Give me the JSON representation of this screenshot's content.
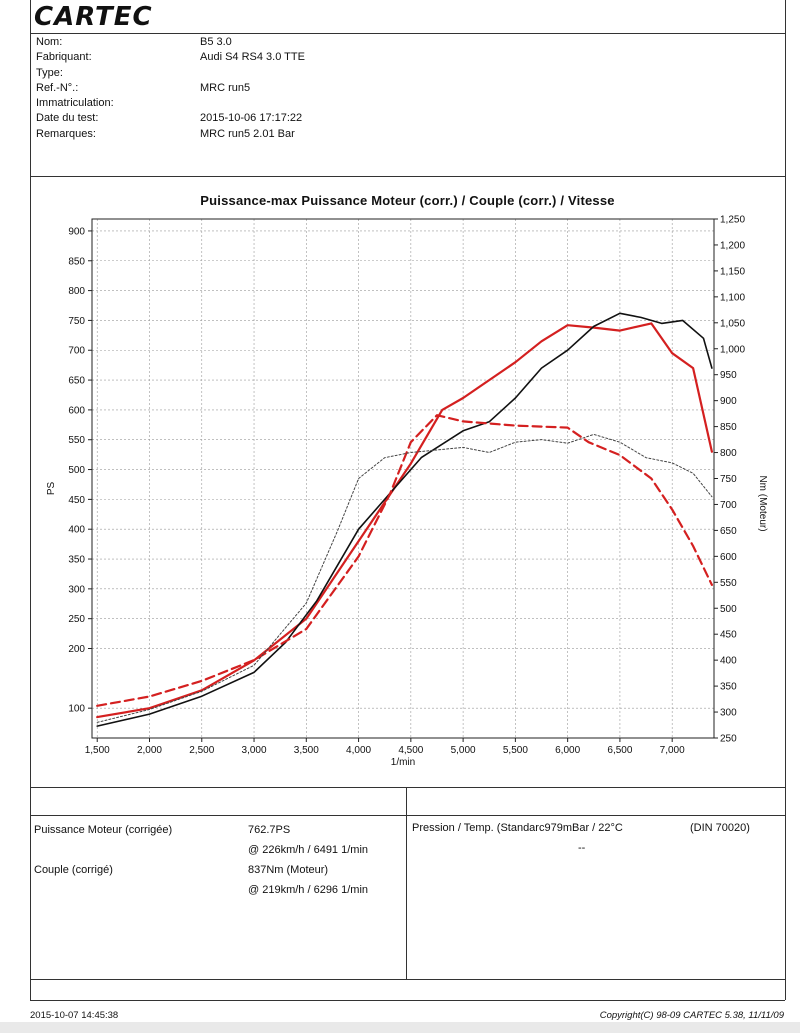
{
  "header": {
    "logo": "CARTEC",
    "fields": [
      {
        "label": "Nom:",
        "value": "B5 3.0"
      },
      {
        "label": "Fabriquant:",
        "value": "Audi S4 RS4 3.0 TTE"
      },
      {
        "label": "Type:",
        "value": ""
      },
      {
        "label": "Ref.-N°.:",
        "value": "MRC run5"
      },
      {
        "label": "Immatriculation:",
        "value": ""
      },
      {
        "label": "Date du test:",
        "value": "2015-10-06 17:17:22"
      },
      {
        "label": "Remarques:",
        "value": "MRC run5 2.01 Bar"
      }
    ]
  },
  "chart_data": {
    "type": "line",
    "title": "Puissance-max Puissance Moteur (corr.) / Couple (corr.) / Vitesse",
    "xlabel": "1/min",
    "ylabel_left": "PS",
    "ylabel_right": "Nm (Moteur)",
    "xlim": [
      1450,
      7400
    ],
    "ylim_left": [
      50,
      920
    ],
    "ylim_right": [
      250,
      1250
    ],
    "x_ticks": [
      1500,
      2000,
      2500,
      3000,
      3500,
      4000,
      4500,
      5000,
      5500,
      6000,
      6500,
      7000
    ],
    "x_tick_labels": [
      "1,500",
      "2,000",
      "2,500",
      "3,000",
      "3,500",
      "4,000",
      "4,500",
      "5,000",
      "5,500",
      "6,000",
      "6,500",
      "7,000"
    ],
    "y_left_ticks": [
      100,
      200,
      250,
      300,
      350,
      400,
      450,
      500,
      550,
      600,
      650,
      700,
      750,
      800,
      850,
      900
    ],
    "y_right_ticks": [
      250,
      300,
      350,
      400,
      450,
      500,
      550,
      600,
      650,
      700,
      750,
      800,
      850,
      900,
      950,
      1000,
      1050,
      1100,
      1150,
      1200,
      1250
    ],
    "y_right_tick_labels": [
      "250",
      "300",
      "350",
      "400",
      "450",
      "500",
      "550",
      "600",
      "650",
      "700",
      "750",
      "800",
      "850",
      "900",
      "950",
      "1,000",
      "1,050",
      "1,100",
      "1,150",
      "1,200",
      "1,250"
    ],
    "grid": true,
    "series": [
      {
        "axis": "left",
        "color": "#d42020",
        "style": "solid",
        "width": 2.2,
        "x": [
          1500,
          2000,
          2500,
          3000,
          3500,
          4000,
          4500,
          4800,
          5000,
          5250,
          5500,
          5750,
          6000,
          6250,
          6500,
          6800,
          7000,
          7200,
          7380
        ],
        "y": [
          85,
          100,
          130,
          180,
          250,
          380,
          510,
          600,
          620,
          650,
          680,
          715,
          742,
          738,
          733,
          745,
          695,
          670,
          530
        ]
      },
      {
        "axis": "left",
        "color": "#111111",
        "style": "solid",
        "width": 1.6,
        "x": [
          1500,
          2000,
          2500,
          3000,
          3300,
          3600,
          4000,
          4300,
          4600,
          5000,
          5250,
          5500,
          5750,
          6000,
          6250,
          6500,
          6700,
          6900,
          7100,
          7300,
          7380
        ],
        "y": [
          70,
          90,
          120,
          160,
          210,
          280,
          400,
          460,
          520,
          565,
          580,
          620,
          670,
          700,
          740,
          762,
          755,
          745,
          750,
          720,
          670
        ]
      },
      {
        "axis": "right",
        "color": "#d42020",
        "style": "dashed",
        "width": 2.2,
        "x": [
          1500,
          2000,
          2500,
          3000,
          3500,
          4000,
          4300,
          4500,
          4750,
          5000,
          5500,
          6000,
          6200,
          6500,
          6800,
          7000,
          7200,
          7380
        ],
        "y": [
          312,
          330,
          360,
          400,
          460,
          600,
          720,
          820,
          872,
          860,
          852,
          848,
          820,
          795,
          750,
          690,
          620,
          545
        ]
      },
      {
        "axis": "right",
        "color": "#444444",
        "style": "dotted",
        "width": 1.0,
        "x": [
          1500,
          2000,
          2500,
          3000,
          3500,
          3800,
          4000,
          4250,
          4500,
          5000,
          5250,
          5500,
          5750,
          6000,
          6250,
          6500,
          6750,
          7000,
          7200,
          7380
        ],
        "y": [
          280,
          305,
          340,
          390,
          510,
          650,
          750,
          790,
          800,
          810,
          800,
          820,
          825,
          818,
          835,
          820,
          790,
          780,
          760,
          715
        ]
      }
    ]
  },
  "results": {
    "power_label": "Puissance Moteur (corrigée)",
    "power_value": "762.7PS",
    "power_at": "@ 226km/h / 6491 1/min",
    "torque_label": "Couple (corrigé)",
    "torque_value": "837Nm (Moteur)",
    "torque_at": "@ 219km/h / 6296 1/min",
    "pressure_label": "Pression / Temp. (Standarc979mBar / 22°C",
    "pressure_norm": "(DIN 70020)",
    "pressure_extra": "--"
  },
  "footer": {
    "printed": "2015-10-07 14:45:38",
    "copyright": "Copyright(C) 98-09 CARTEC 5.38, 11/11/09"
  }
}
